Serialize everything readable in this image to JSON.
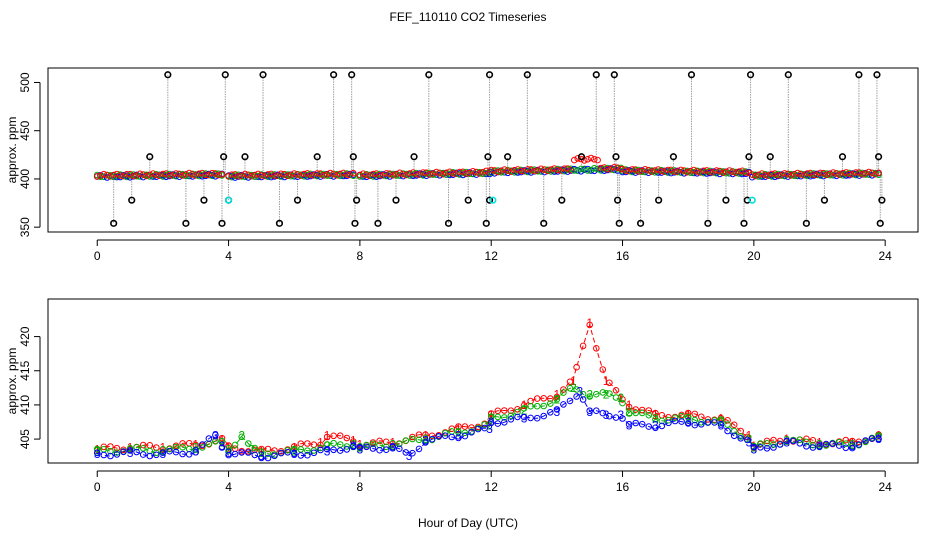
{
  "figure": {
    "title": "FEF_110110  CO2 Timeseries",
    "xlabel": "Hour of Day (UTC)"
  },
  "colors": {
    "series1": "#ff0000",
    "series2": "#00b000",
    "series3": "#0000ff",
    "outlier": "#000000",
    "cal": "#00e0e0",
    "connector": "#a0a0a0"
  },
  "chart_data": [
    {
      "type": "scatter",
      "title": "FEF_110110  CO2 Timeseries",
      "ylabel": "approx. ppm",
      "xlim": [
        -1.5,
        25
      ],
      "ylim": [
        345,
        515
      ],
      "xticks": [
        0,
        4,
        8,
        12,
        16,
        20,
        24
      ],
      "yticks": [
        350,
        400,
        450,
        500
      ],
      "baseline_segments": [
        {
          "start": 0,
          "end": 3.8,
          "base": [
            402.5,
            404
          ]
        },
        {
          "start": 4.0,
          "end": 7.8,
          "base": [
            402.5,
            404
          ]
        },
        {
          "start": 8.0,
          "end": 11.95,
          "base": [
            403,
            406
          ]
        },
        {
          "start": 12.0,
          "end": 15.95,
          "base": [
            407,
            410
          ]
        },
        {
          "start": 16.0,
          "end": 19.85,
          "base": [
            408,
            406
          ]
        },
        {
          "start": 19.95,
          "end": 23.8,
          "base": [
            403,
            405
          ]
        }
      ],
      "outlier_high": [
        2.15,
        3.9,
        5.05,
        7.2,
        7.75,
        10.1,
        11.95,
        13.1,
        15.2,
        15.75,
        18.1,
        19.9,
        21.05,
        23.2,
        23.75
      ],
      "outlier_mid": [
        1.6,
        3.85,
        4.5,
        6.7,
        7.8,
        9.65,
        11.9,
        12.5,
        14.75,
        15.8,
        17.55,
        19.85,
        20.5,
        22.7,
        23.8
      ],
      "outlier_low1": [
        0.5,
        2.7,
        3.8,
        5.55,
        7.85,
        8.55,
        10.7,
        11.85,
        13.6,
        15.9,
        16.55,
        18.6,
        19.7,
        21.6,
        23.85
      ],
      "outlier_low2": [
        1.05,
        3.25,
        4.0,
        6.1,
        7.9,
        9.1,
        11.3,
        11.95,
        14.15,
        15.85,
        17.1,
        19.15,
        19.8,
        22.15,
        23.9
      ],
      "outlier_values": {
        "high": 508,
        "mid": 423,
        "low1": 354,
        "low2": 378
      },
      "cal_points": [
        {
          "x": 4.0,
          "y": 378
        },
        {
          "x": 12.05,
          "y": 378
        },
        {
          "x": 19.95,
          "y": 378
        }
      ]
    },
    {
      "type": "scatter",
      "ylabel": "approx. ppm",
      "xlim": [
        -1.5,
        25
      ],
      "ylim": [
        401.5,
        425.5
      ],
      "xticks": [
        0,
        4,
        8,
        12,
        16,
        20,
        24
      ],
      "yticks": [
        405,
        410,
        415,
        420
      ],
      "series": [
        {
          "name": "1",
          "marker": "1",
          "x": [
            0,
            1,
            2,
            3,
            3.8,
            4.0,
            5,
            6,
            6.8,
            7,
            7.8,
            8.0,
            9,
            10,
            11,
            11.95,
            12.0,
            13,
            14,
            14.5,
            15,
            15.5,
            15.95,
            16.2,
            17,
            18,
            19,
            19.85,
            20,
            21,
            22,
            23,
            23.8
          ],
          "values": [
            403.5,
            403.8,
            403.8,
            404.2,
            404.8,
            403.8,
            403.2,
            403.8,
            404.5,
            405.5,
            404.8,
            404.2,
            404.5,
            405.5,
            406.5,
            407.5,
            408.5,
            410,
            411.5,
            413.5,
            422,
            413.5,
            411,
            410,
            408.5,
            408.5,
            408,
            405.5,
            404,
            405,
            404.5,
            404.5,
            405.5
          ]
        },
        {
          "name": "2",
          "marker": "2",
          "x": [
            0,
            1,
            2,
            3,
            3.8,
            4.0,
            4.4,
            4.7,
            5,
            6,
            7,
            7.8,
            8.0,
            9,
            10,
            11,
            11.95,
            12.0,
            13,
            14,
            14.5,
            15,
            15.5,
            15.95,
            16.2,
            17,
            18,
            19,
            19.85,
            20,
            21,
            22,
            23,
            23.8
          ],
          "values": [
            403.2,
            403.5,
            403.3,
            403.8,
            404.5,
            403.5,
            405.5,
            403.5,
            403,
            403.2,
            404,
            404.2,
            403.8,
            404.2,
            405,
            406,
            407,
            408,
            409.2,
            410.8,
            412.5,
            411.5,
            411.5,
            411,
            409,
            408,
            408,
            407.5,
            405,
            403.8,
            404.8,
            404.2,
            404.2,
            405.2
          ]
        },
        {
          "name": "3",
          "marker": "3",
          "x": [
            0,
            1,
            2,
            3,
            3.6,
            3.8,
            4.0,
            5,
            6,
            7,
            7.8,
            8.0,
            9,
            9.5,
            10,
            11,
            11.95,
            12.0,
            13,
            14,
            14.7,
            15,
            15.5,
            15.95,
            16.2,
            17,
            18,
            19,
            19.85,
            20,
            21,
            22,
            23,
            23.8
          ],
          "values": [
            402.8,
            403,
            402.8,
            403.2,
            405.5,
            404,
            403,
            402.5,
            402.8,
            403.2,
            404,
            403.5,
            403.8,
            402.5,
            404.8,
            405.5,
            406.5,
            407.5,
            408,
            409,
            412,
            409,
            408.5,
            408.5,
            407,
            407,
            407.5,
            407,
            404.5,
            403.5,
            404.5,
            404,
            404,
            405
          ]
        }
      ]
    }
  ]
}
